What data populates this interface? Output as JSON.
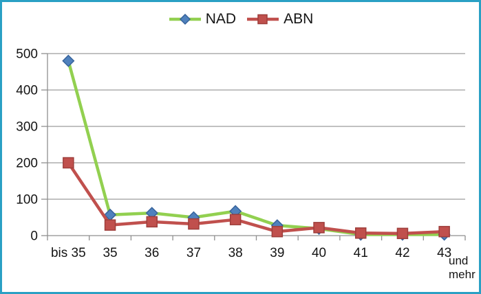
{
  "frame": {
    "border_color": "#2AA0C4"
  },
  "chart_data": {
    "type": "line",
    "title": "",
    "categories": [
      "bis 35",
      "35",
      "36",
      "37",
      "38",
      "39",
      "40",
      "41",
      "42",
      "43"
    ],
    "x_axis_overflow_label": "und mehr",
    "series": [
      {
        "name": "NAD",
        "values": [
          480,
          57,
          62,
          50,
          67,
          28,
          19,
          3,
          3,
          3
        ],
        "line_color": "#92D050",
        "marker": "diamond",
        "marker_fill": "#4F81BD",
        "marker_stroke": "#36629B"
      },
      {
        "name": "ABN",
        "values": [
          200,
          29,
          38,
          32,
          44,
          11,
          22,
          7,
          6,
          11
        ],
        "line_color": "#C0504D",
        "marker": "square",
        "marker_fill": "#C0504D",
        "marker_stroke": "#9E3E3B"
      }
    ],
    "xlabel": "",
    "ylabel": "",
    "ylim": [
      0,
      500
    ],
    "yticks": [
      0,
      100,
      200,
      300,
      400,
      500
    ],
    "grid": true,
    "legend_position": "top-center",
    "axis_color": "#8F8F8F",
    "grid_color": "#9C9C9C",
    "text_color": "#141414"
  }
}
